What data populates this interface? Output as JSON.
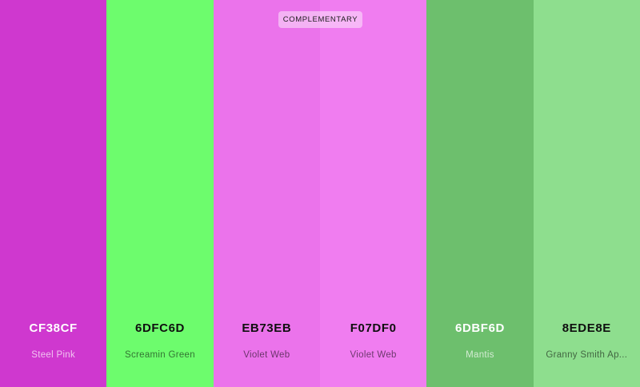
{
  "badge": {
    "label": "COMPLEMENTARY"
  },
  "swatches": [
    {
      "hex": "CF38CF",
      "name": "Steel Pink",
      "color": "#CF38CF",
      "text": "light"
    },
    {
      "hex": "6DFC6D",
      "name": "Screamin Green",
      "color": "#6DFC6D",
      "text": "dark"
    },
    {
      "hex": "EB73EB",
      "name": "Violet Web",
      "color": "#EB73EB",
      "text": "dark"
    },
    {
      "hex": "F07DF0",
      "name": "Violet Web",
      "color": "#F07DF0",
      "text": "dark"
    },
    {
      "hex": "6DBF6D",
      "name": "Mantis",
      "color": "#6DBF6D",
      "text": "light"
    },
    {
      "hex": "8EDE8E",
      "name": "Granny Smith Ap...",
      "color": "#8EDE8E",
      "text": "dark"
    }
  ]
}
